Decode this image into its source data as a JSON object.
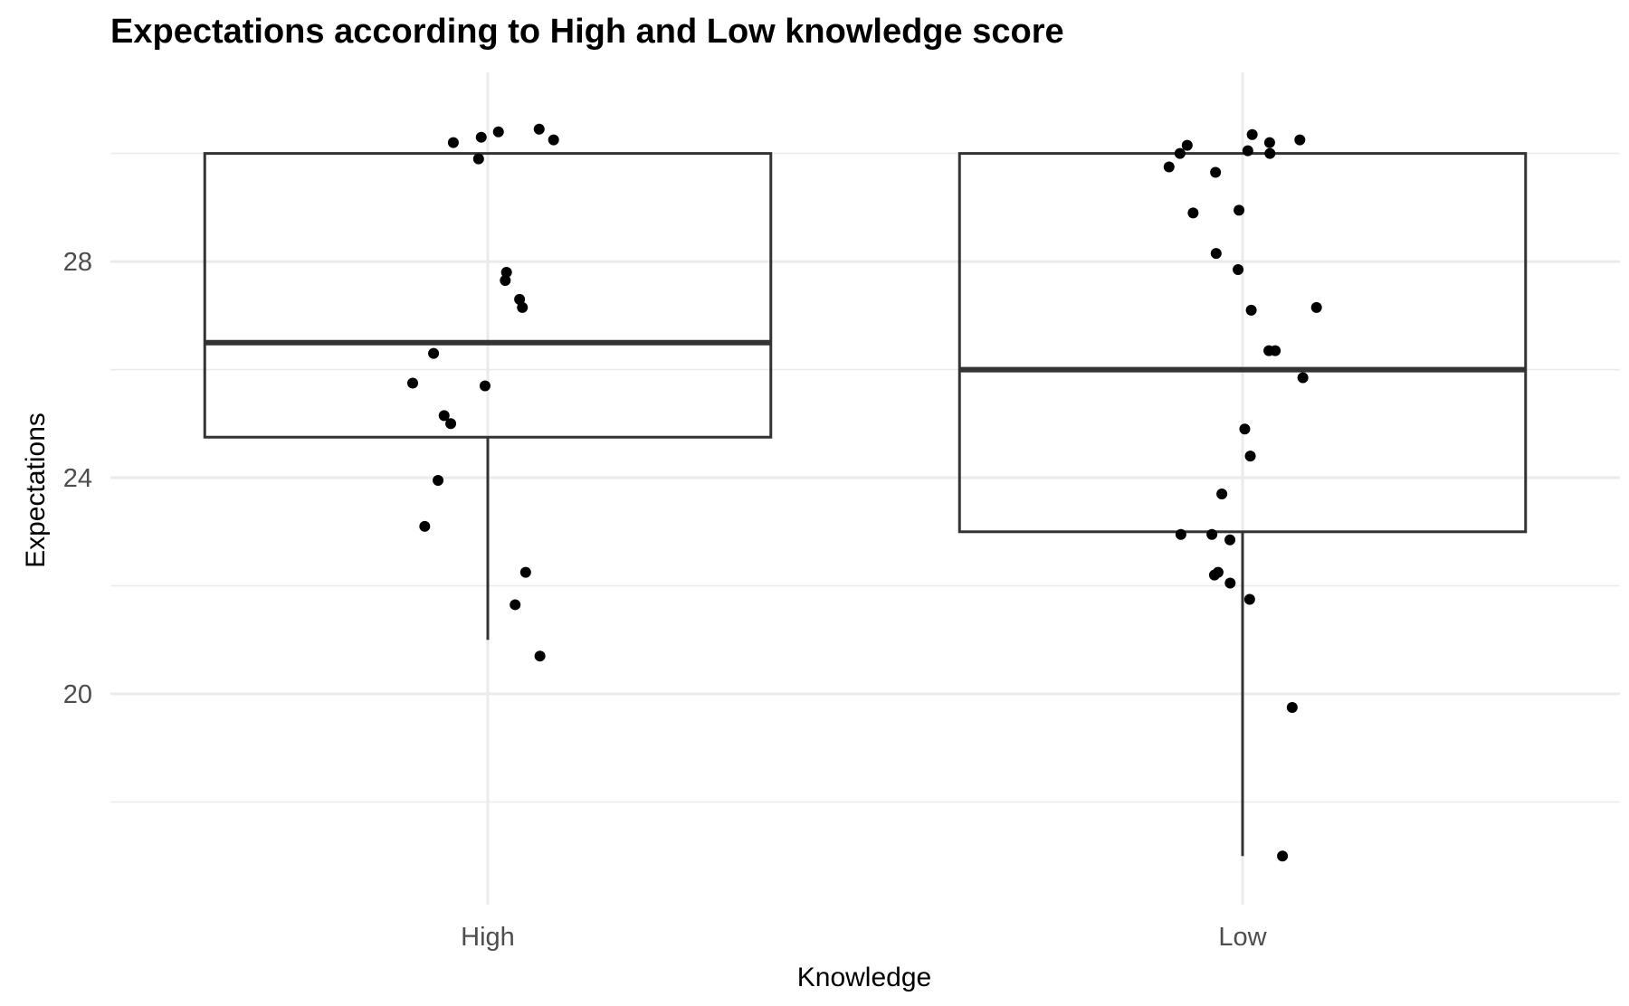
{
  "chart_data": {
    "type": "boxplot",
    "title": "Expectations according to High and Low knowledge score",
    "xlabel": "Knowledge",
    "ylabel": "Expectations",
    "categories": [
      "High",
      "Low"
    ],
    "ylim": [
      16.1,
      31.5
    ],
    "y_ticks": [
      20,
      24,
      28
    ],
    "grid": true,
    "boxes": [
      {
        "category": "High",
        "whisker_low": 21.0,
        "q1": 24.75,
        "median": 26.5,
        "q3": 30.0,
        "whisker_high": 30.0
      },
      {
        "category": "Low",
        "whisker_low": 17.0,
        "q1": 23.0,
        "median": 26.0,
        "q3": 30.0,
        "whisker_high": 30.0
      }
    ],
    "points": [
      {
        "category": "High",
        "y": [
          30.3,
          29.9,
          30.2,
          30.4,
          30.45,
          30.25,
          27.8,
          27.65,
          27.3,
          27.15,
          26.3,
          25.7,
          25.75,
          25.15,
          25.0,
          23.95,
          23.1,
          22.25,
          21.65,
          20.7
        ]
      },
      {
        "category": "Low",
        "y": [
          30.35,
          30.25,
          30.2,
          30.05,
          30.0,
          30.0,
          30.15,
          29.75,
          29.65,
          28.95,
          28.9,
          28.15,
          27.85,
          27.15,
          27.1,
          26.35,
          26.35,
          25.85,
          24.9,
          24.4,
          23.7,
          22.95,
          22.95,
          22.85,
          22.25,
          22.2,
          22.05,
          21.75,
          19.75,
          17.0
        ]
      }
    ]
  }
}
